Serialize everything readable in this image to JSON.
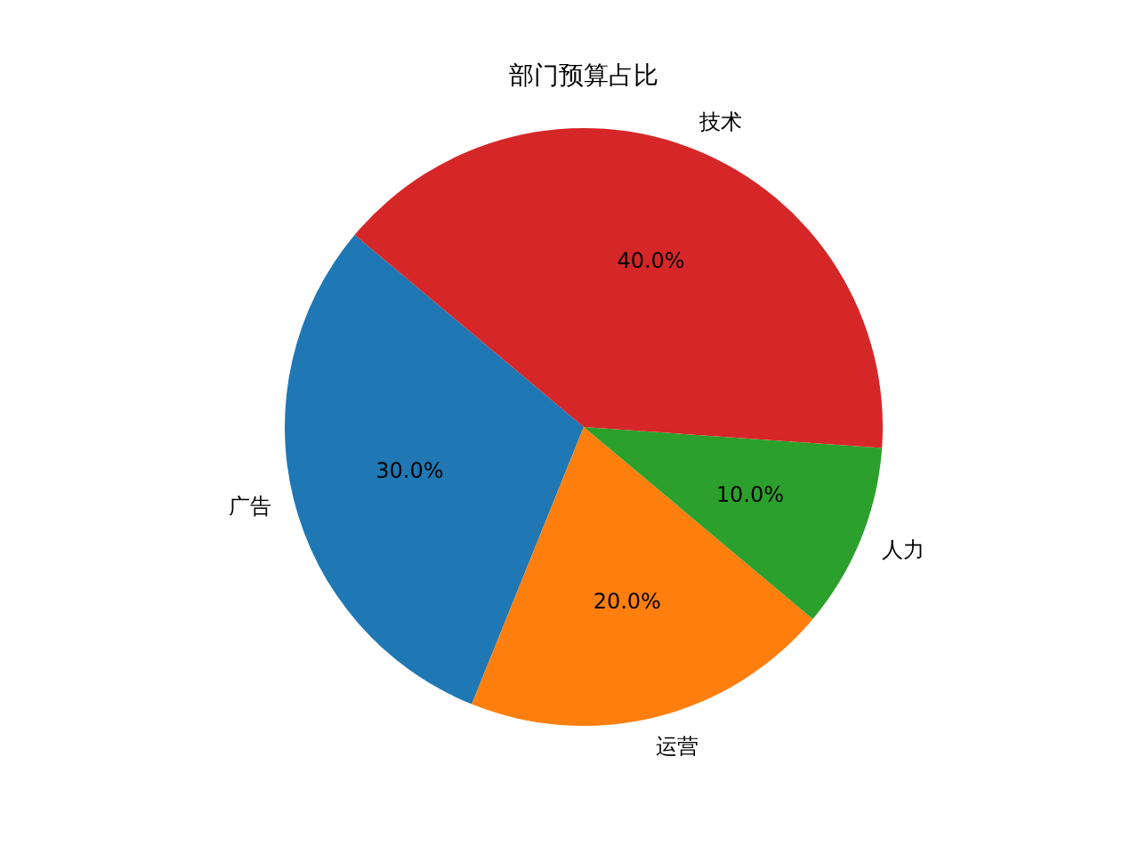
{
  "chart_data": {
    "type": "pie",
    "title": "部门预算占比",
    "categories": [
      "广告",
      "运营",
      "人力",
      "技术"
    ],
    "values": [
      30,
      20,
      10,
      40
    ],
    "colors": [
      "#1f77b4",
      "#ff7f0e",
      "#2ca02c",
      "#d62728"
    ],
    "value_labels": [
      "30.0%",
      "20.0%",
      "10.0%",
      "40.0%"
    ]
  }
}
